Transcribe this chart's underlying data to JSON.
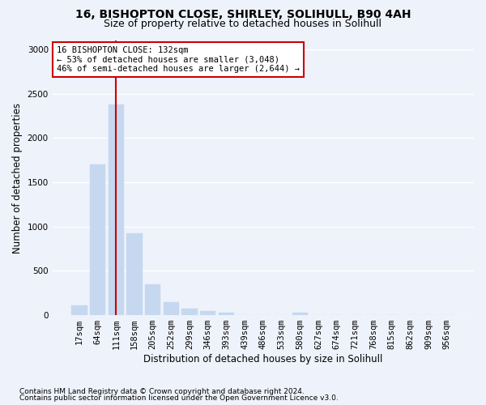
{
  "title1": "16, BISHOPTON CLOSE, SHIRLEY, SOLIHULL, B90 4AH",
  "title2": "Size of property relative to detached houses in Solihull",
  "xlabel": "Distribution of detached houses by size in Solihull",
  "ylabel": "Number of detached properties",
  "footnote1": "Contains HM Land Registry data © Crown copyright and database right 2024.",
  "footnote2": "Contains public sector information licensed under the Open Government Licence v3.0.",
  "bar_labels": [
    "17sqm",
    "64sqm",
    "111sqm",
    "158sqm",
    "205sqm",
    "252sqm",
    "299sqm",
    "346sqm",
    "393sqm",
    "439sqm",
    "486sqm",
    "533sqm",
    "580sqm",
    "627sqm",
    "674sqm",
    "721sqm",
    "768sqm",
    "815sqm",
    "862sqm",
    "909sqm",
    "956sqm"
  ],
  "bar_values": [
    110,
    1700,
    2380,
    920,
    345,
    150,
    70,
    50,
    30,
    0,
    0,
    0,
    30,
    0,
    0,
    0,
    0,
    0,
    0,
    0,
    0
  ],
  "bar_color": "#c5d8f0",
  "bar_edge_color": "#c5d8f0",
  "highlight_bar_index": 2,
  "highlight_color": "#cc0000",
  "annotation_text": "16 BISHOPTON CLOSE: 132sqm\n← 53% of detached houses are smaller (3,048)\n46% of semi-detached houses are larger (2,644) →",
  "annotation_box_color": "#ffffff",
  "annotation_box_edge": "#cc0000",
  "ylim": [
    0,
    3100
  ],
  "yticks": [
    0,
    500,
    1000,
    1500,
    2000,
    2500,
    3000
  ],
  "background_color": "#eef2fb",
  "grid_color": "#ffffff",
  "title1_fontsize": 10,
  "title2_fontsize": 9,
  "xlabel_fontsize": 8.5,
  "ylabel_fontsize": 8.5,
  "tick_fontsize": 7.5,
  "footnote_fontsize": 6.5
}
